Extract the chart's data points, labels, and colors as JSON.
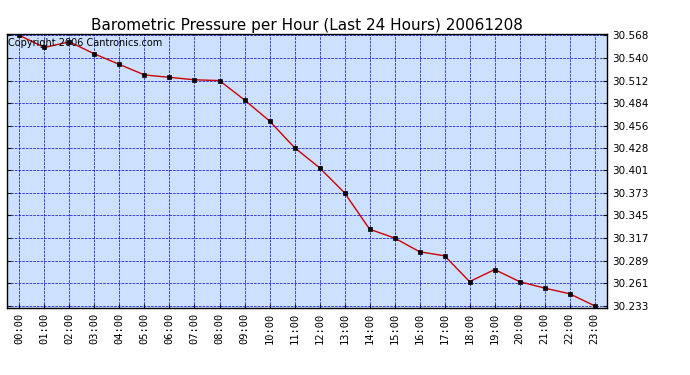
{
  "title": "Barometric Pressure per Hour (Last 24 Hours) 20061208",
  "copyright_text": "Copyright 2006 Cantronics.com",
  "x_labels": [
    "00:00",
    "01:00",
    "02:00",
    "03:00",
    "04:00",
    "05:00",
    "06:00",
    "07:00",
    "08:00",
    "09:00",
    "10:00",
    "11:00",
    "12:00",
    "13:00",
    "14:00",
    "15:00",
    "16:00",
    "17:00",
    "18:00",
    "19:00",
    "20:00",
    "21:00",
    "22:00",
    "23:00"
  ],
  "y_values": [
    30.568,
    30.553,
    30.56,
    30.545,
    30.532,
    30.519,
    30.516,
    30.513,
    30.512,
    30.488,
    30.462,
    30.429,
    30.404,
    30.373,
    30.328,
    30.317,
    30.3,
    30.295,
    30.263,
    30.278,
    30.263,
    30.255,
    30.248,
    30.233
  ],
  "y_min": 30.233,
  "y_max": 30.568,
  "y_ticks": [
    30.233,
    30.261,
    30.289,
    30.317,
    30.345,
    30.373,
    30.401,
    30.428,
    30.456,
    30.484,
    30.512,
    30.54,
    30.568
  ],
  "line_color": "#cc0000",
  "marker_color": "#000000",
  "grid_color": "#0000cc",
  "plot_bg_color": "#cce0ff",
  "title_fontsize": 11,
  "copyright_fontsize": 7,
  "tick_fontsize": 7.5
}
